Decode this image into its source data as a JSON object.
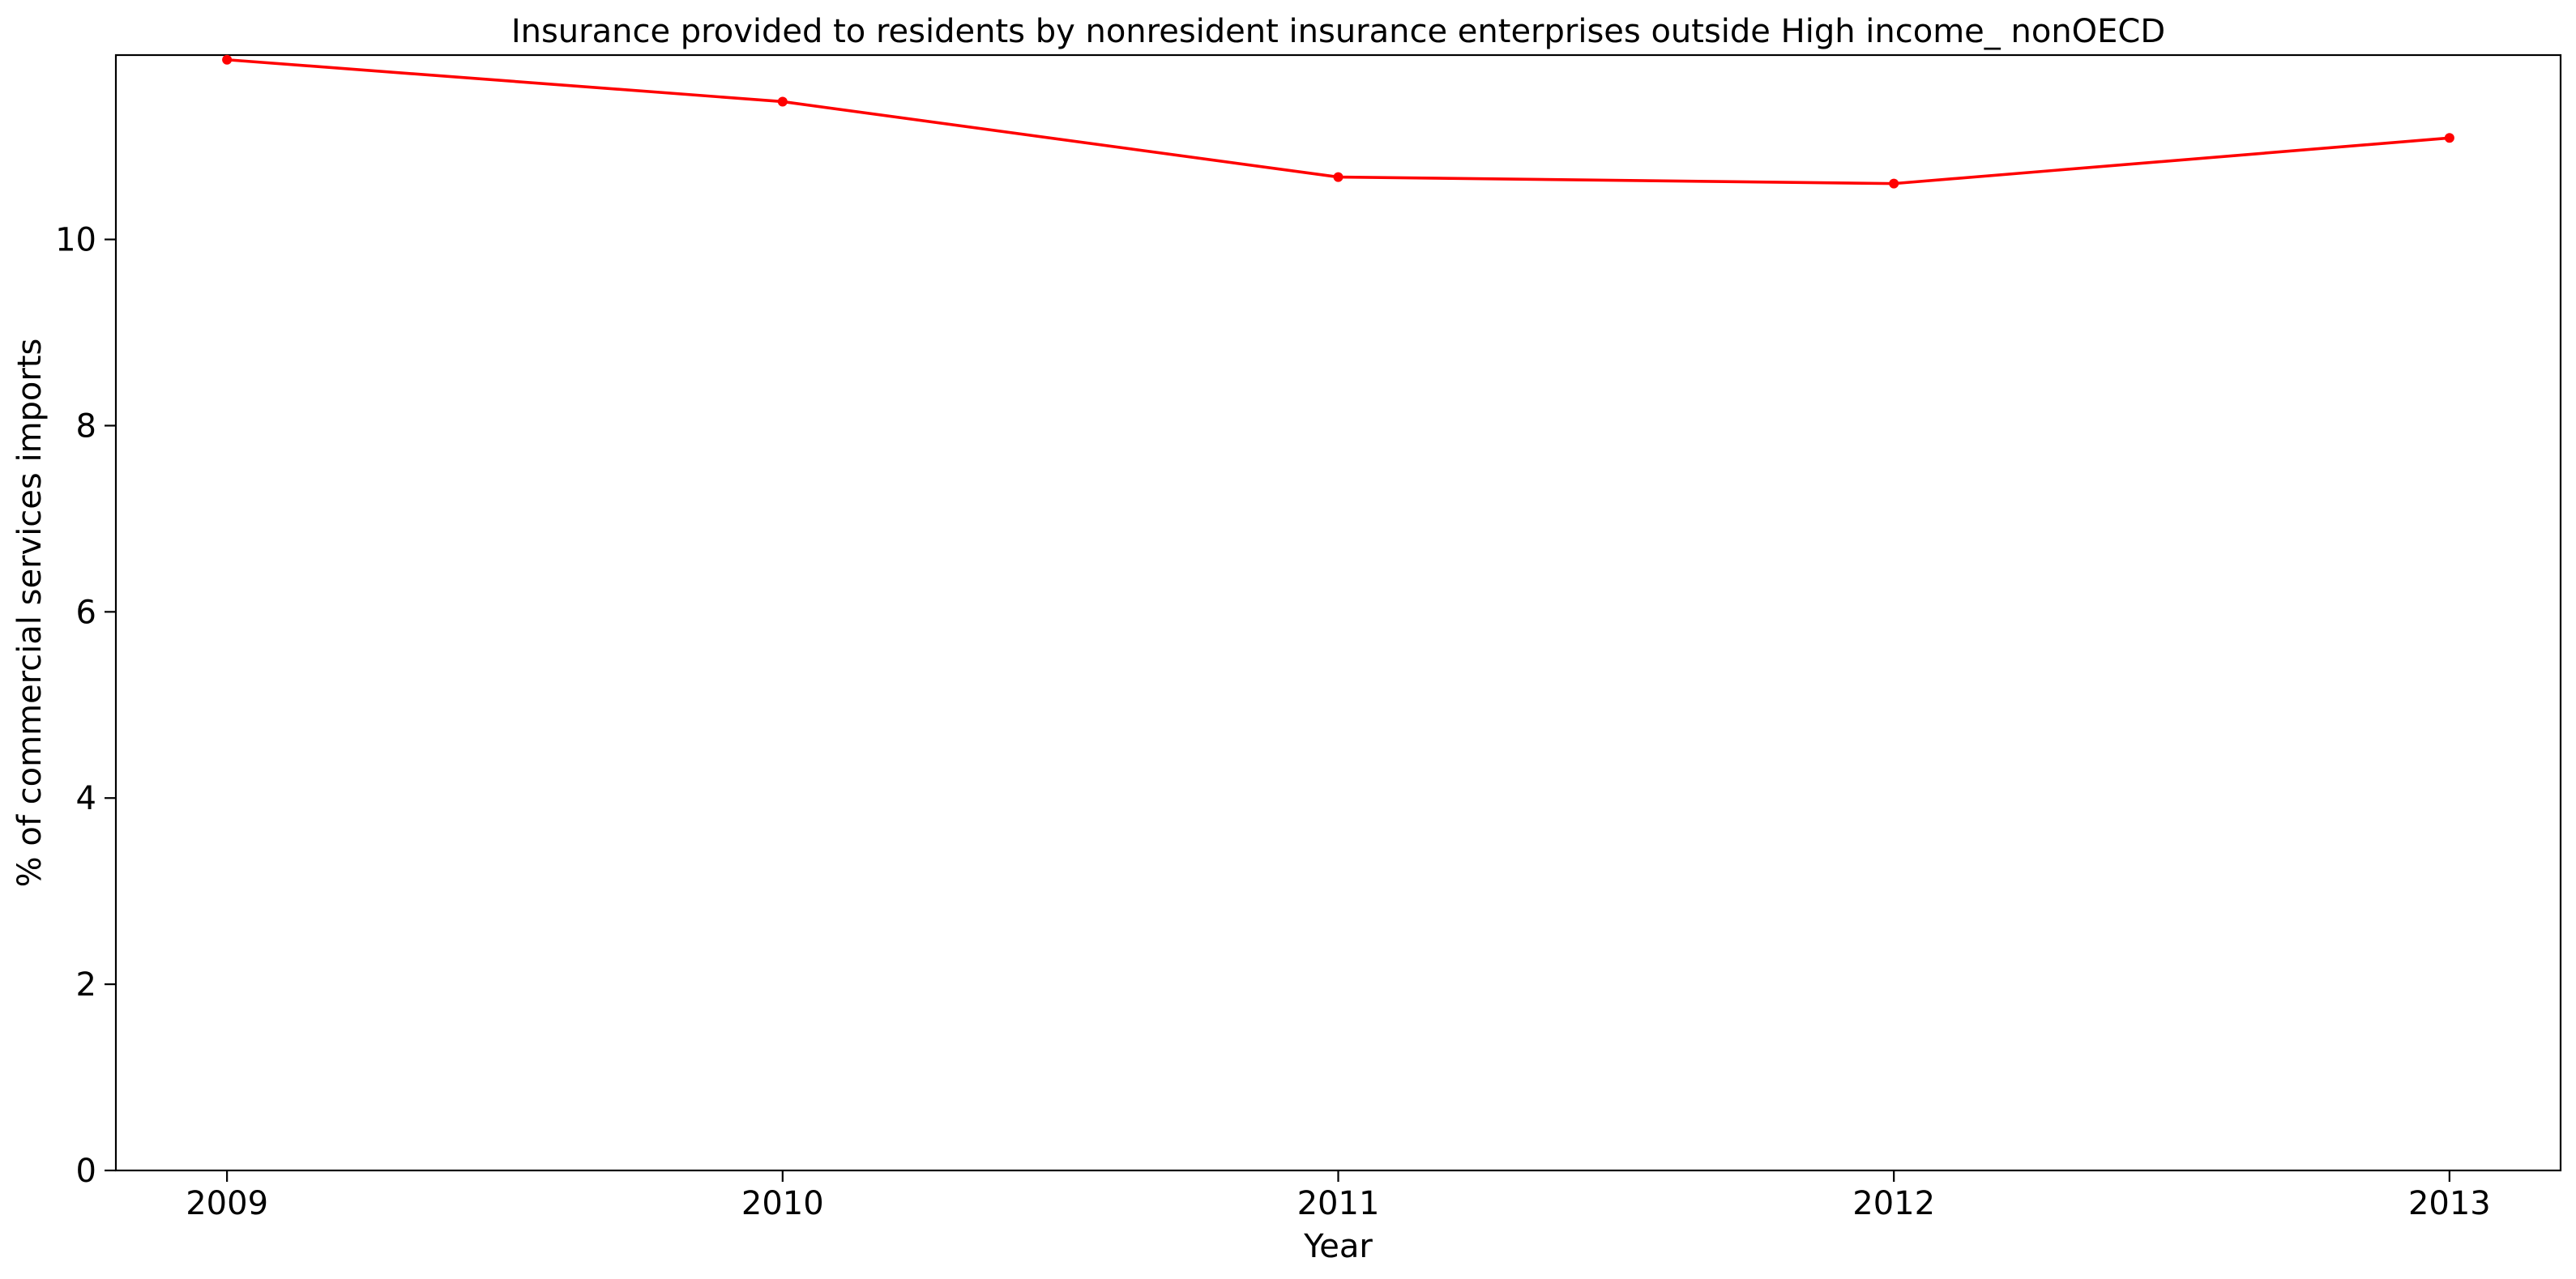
{
  "chart_data": {
    "type": "line",
    "title": "Insurance provided to residents by nonresident insurance enterprises outside High income_ nonOECD",
    "xlabel": "Year",
    "ylabel": "% of commercial services imports",
    "x": [
      2009,
      2010,
      2011,
      2012,
      2013
    ],
    "x_tick_labels": [
      "2009",
      "2010",
      "2011",
      "2012",
      "2013"
    ],
    "y_ticks": [
      0,
      2,
      4,
      6,
      8,
      10
    ],
    "y_tick_labels": [
      "0",
      "2",
      "4",
      "6",
      "8",
      "10"
    ],
    "xlim": [
      2008.8,
      2013.2
    ],
    "ylim": [
      0,
      11.98
    ],
    "grid": false,
    "legend": "none",
    "series": [
      {
        "values": [
          11.93,
          11.48,
          10.67,
          10.6,
          11.09
        ],
        "color": "#ff0000",
        "marker": "dot"
      }
    ]
  }
}
